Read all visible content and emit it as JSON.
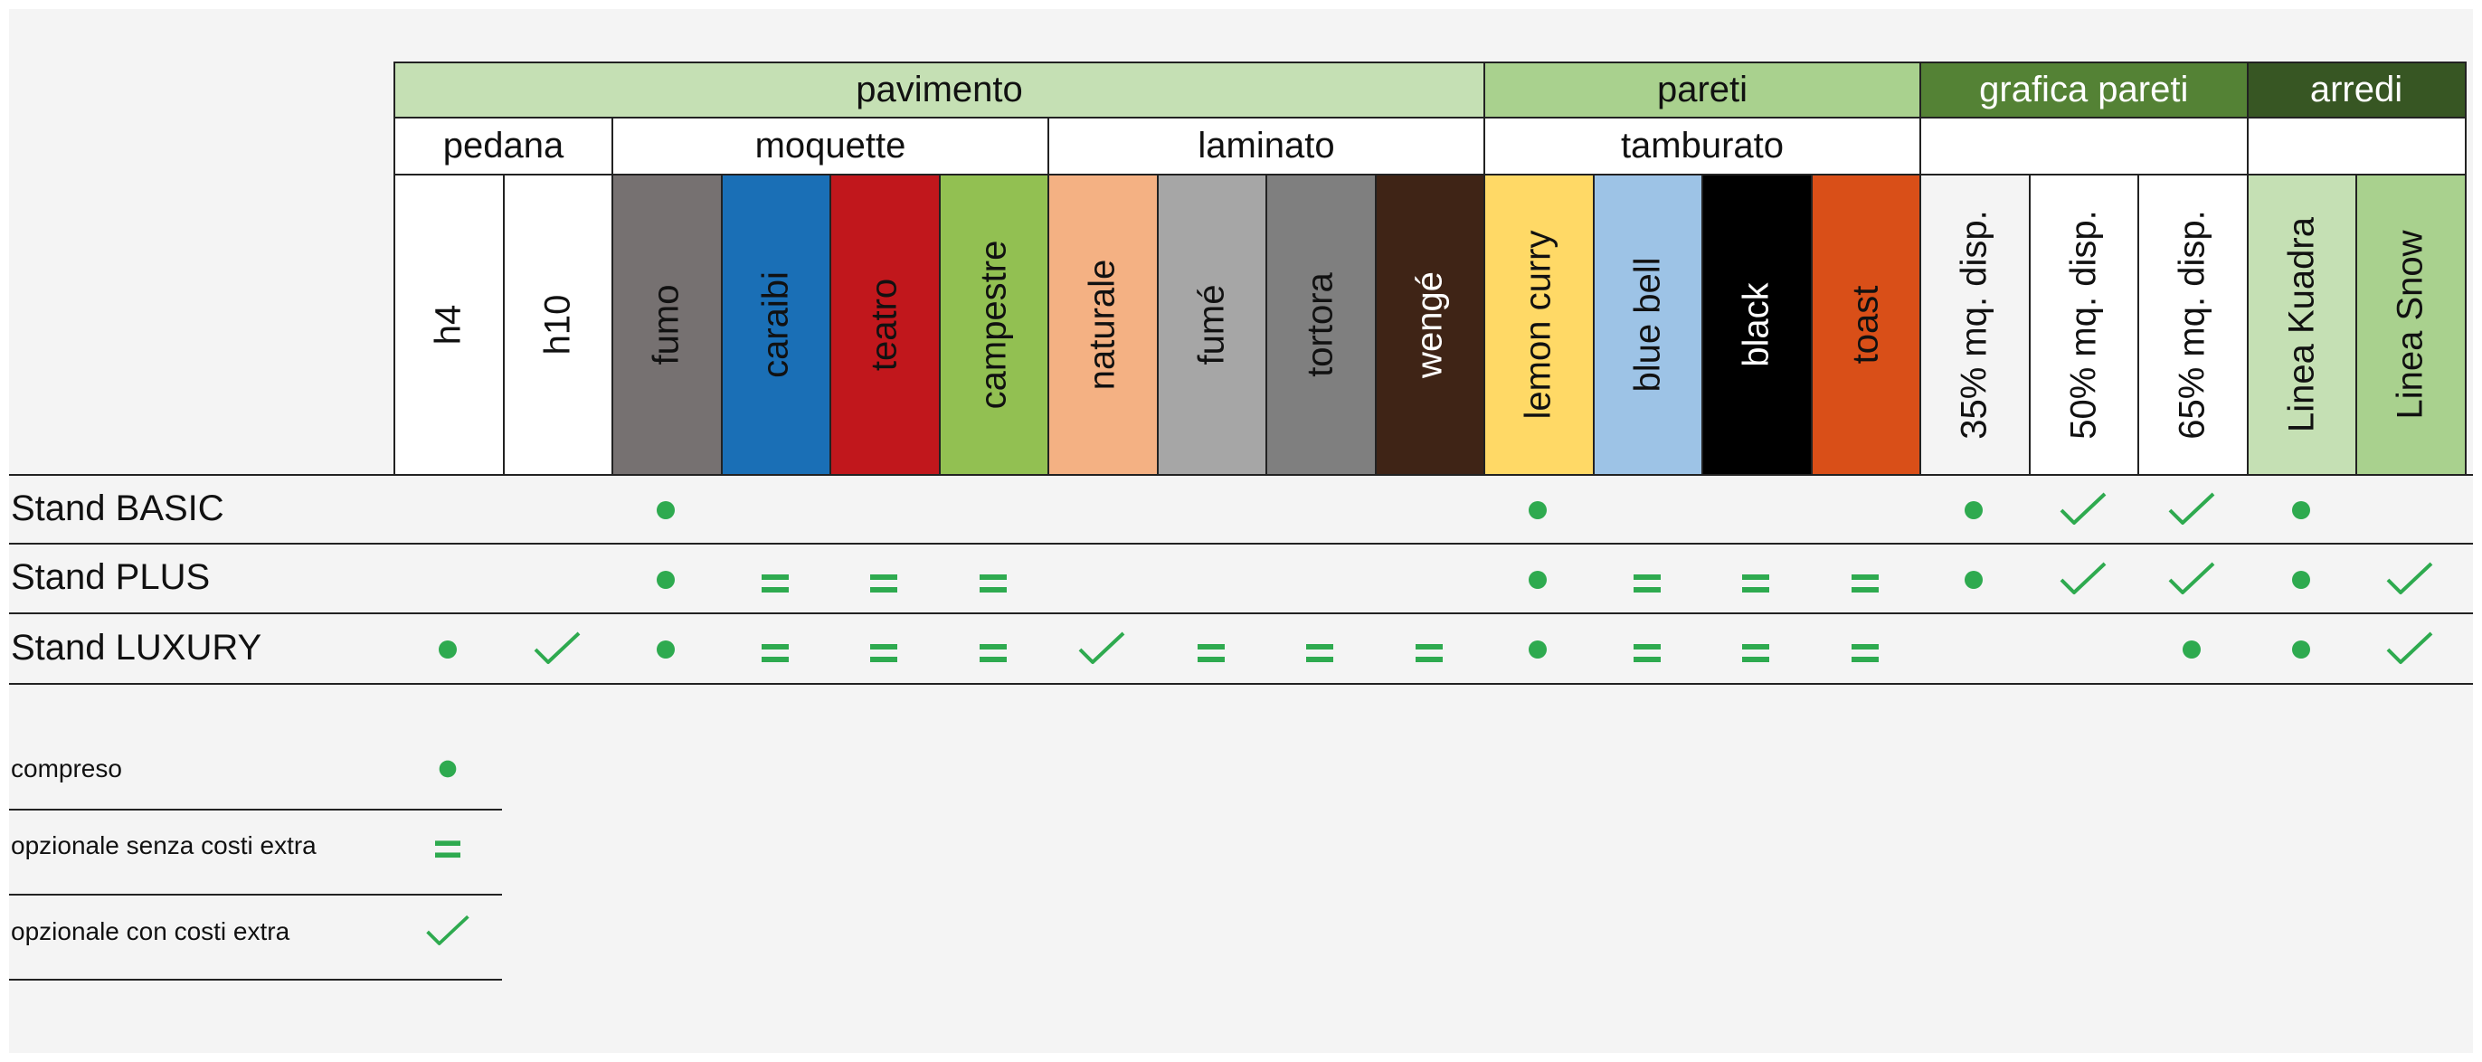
{
  "groups": [
    {
      "label": "pavimento",
      "color": "#c5e0b4"
    },
    {
      "label": "pareti",
      "color": "#a9d18e"
    },
    {
      "label": "grafica pareti",
      "color": "#548235",
      "text_color": "#ffffff"
    },
    {
      "label": "arredi",
      "color": "#375623",
      "text_color": "#ffffff"
    }
  ],
  "subgroups": [
    "pedana",
    "moquette",
    "laminato",
    "tamburato",
    "",
    ""
  ],
  "columns": [
    {
      "label": "h4",
      "color": "#ffffff",
      "text_color": "#111111"
    },
    {
      "label": "h10",
      "color": "#ffffff",
      "text_color": "#111111"
    },
    {
      "label": "fumo",
      "color": "#767171",
      "text_color": "#111111"
    },
    {
      "label": "caraibi",
      "color": "#1a6fb6",
      "text_color": "#111111"
    },
    {
      "label": "teatro",
      "color": "#c1171c",
      "text_color": "#111111"
    },
    {
      "label": "campestre",
      "color": "#92c052",
      "text_color": "#111111"
    },
    {
      "label": "naturale",
      "color": "#f4b183",
      "text_color": "#111111"
    },
    {
      "label": "fumé",
      "color": "#a6a6a6",
      "text_color": "#111111"
    },
    {
      "label": "tortora",
      "color": "#7f7f7f",
      "text_color": "#111111"
    },
    {
      "label": "wengé",
      "color": "#3f2416",
      "text_color": "#ffffff"
    },
    {
      "label": "lemon curry",
      "color": "#ffd966",
      "text_color": "#111111"
    },
    {
      "label": "blue bell",
      "color": "#9dc3e6",
      "text_color": "#111111"
    },
    {
      "label": "black",
      "color": "#000000",
      "text_color": "#ffffff"
    },
    {
      "label": "toast",
      "color": "#d94f18",
      "text_color": "#111111"
    },
    {
      "label": "35% mq. disp.",
      "color": "#f4f4f4",
      "text_color": "#111111"
    },
    {
      "label": "50% mq. disp.",
      "color": "#ffffff",
      "text_color": "#111111"
    },
    {
      "label": "65% mq. disp.",
      "color": "#ffffff",
      "text_color": "#111111"
    },
    {
      "label": "Linea Kuadra",
      "color": "#c5e0b4",
      "text_color": "#111111"
    },
    {
      "label": "Linea Snow",
      "color": "#a9d18e",
      "text_color": "#111111"
    }
  ],
  "rows": [
    {
      "label": "Stand BASIC",
      "marks": [
        "",
        "",
        "dot",
        "",
        "",
        "",
        "",
        "",
        "",
        "",
        "dot",
        "",
        "",
        "",
        "dot",
        "check",
        "check",
        "dot",
        ""
      ]
    },
    {
      "label": "Stand PLUS",
      "marks": [
        "",
        "",
        "dot",
        "eq",
        "eq",
        "eq",
        "",
        "",
        "",
        "",
        "dot",
        "eq",
        "eq",
        "eq",
        "dot",
        "check",
        "check",
        "dot",
        "check"
      ]
    },
    {
      "label": "Stand LUXURY",
      "marks": [
        "dot",
        "check",
        "dot",
        "eq",
        "eq",
        "eq",
        "check",
        "eq",
        "eq",
        "eq",
        "dot",
        "eq",
        "eq",
        "eq",
        "",
        "",
        "dot",
        "dot",
        "check"
      ]
    }
  ],
  "legend": [
    {
      "label": "compreso",
      "mark": "dot"
    },
    {
      "label": "opzionale senza costi extra",
      "mark": "eq"
    },
    {
      "label": "opzionale con costi extra",
      "mark": "check"
    }
  ],
  "mark_color": "#2eaa4f"
}
